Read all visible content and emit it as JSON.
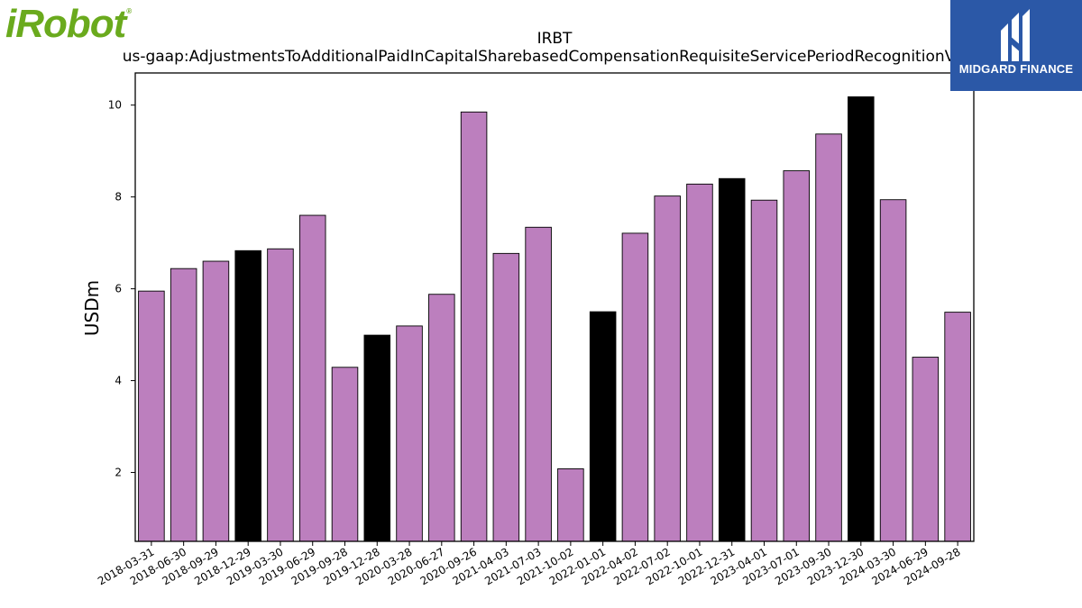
{
  "logos": {
    "left": {
      "text": "iRobot",
      "mark": "®",
      "color": "#6aaa1d"
    },
    "right": {
      "text": "MIDGARD FINANCE",
      "background": "#2b58a7",
      "icon": "midgard-m-icon"
    }
  },
  "chart_data": {
    "type": "bar",
    "title": "IRBT",
    "subtitle": "us-gaap:AdjustmentsToAdditionalPaidInCapitalSharebasedCompensationRequisiteServicePeriodRecognitionValue",
    "xlabel": "",
    "ylabel": "USDm",
    "ylim": [
      0.5,
      10.7
    ],
    "yticks": [
      2,
      4,
      6,
      8,
      10
    ],
    "grid": false,
    "categories": [
      "2018-03-31",
      "2018-06-30",
      "2018-09-29",
      "2018-12-29",
      "2019-03-30",
      "2019-06-29",
      "2019-09-28",
      "2019-12-28",
      "2020-03-28",
      "2020-06-27",
      "2020-09-26",
      "2021-04-03",
      "2021-07-03",
      "2021-10-02",
      "2022-01-01",
      "2022-04-02",
      "2022-07-02",
      "2022-10-01",
      "2022-12-31",
      "2023-04-01",
      "2023-07-01",
      "2023-09-30",
      "2023-12-30",
      "2024-03-30",
      "2024-06-29",
      "2024-09-28"
    ],
    "values": [
      5.95,
      6.44,
      6.6,
      6.83,
      6.87,
      7.6,
      4.29,
      4.99,
      5.19,
      5.88,
      9.85,
      6.77,
      7.34,
      2.08,
      5.5,
      7.21,
      8.02,
      8.28,
      8.4,
      7.93,
      8.57,
      9.37,
      10.18,
      7.94,
      4.51,
      5.49
    ],
    "highlight": [
      false,
      false,
      false,
      true,
      false,
      false,
      false,
      true,
      false,
      false,
      false,
      false,
      false,
      false,
      true,
      false,
      false,
      false,
      true,
      false,
      false,
      false,
      true,
      false,
      false,
      false
    ],
    "colors": {
      "bar": "#bc7fbe",
      "highlight": "#000000",
      "edge": "#000000"
    }
  }
}
